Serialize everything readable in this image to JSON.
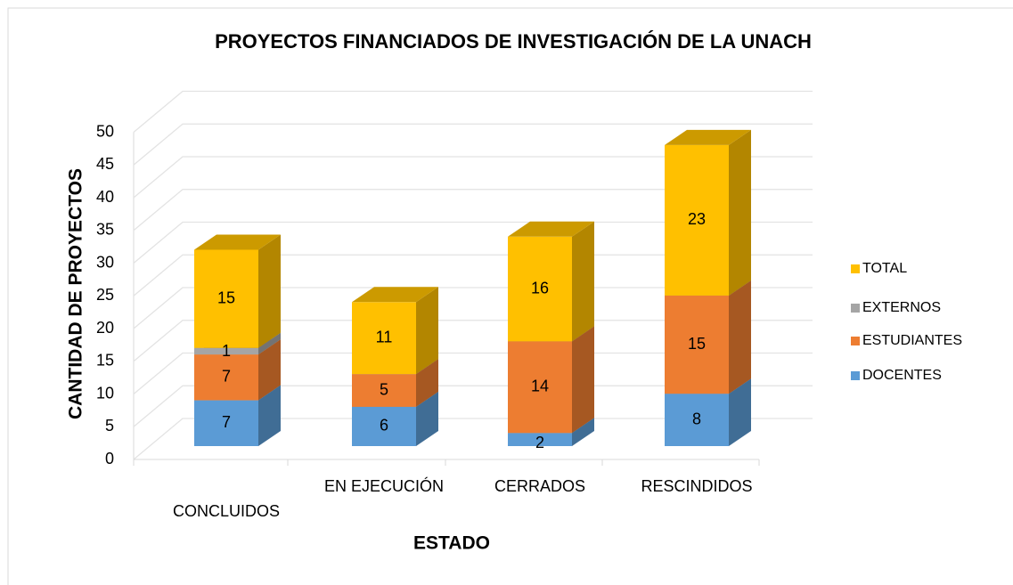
{
  "chart_data": {
    "type": "bar3d_stacked",
    "title": "PROYECTOS FINANCIADOS DE INVESTIGACIÓN DE LA UNACH",
    "x_label": "ESTADO",
    "y_label": "CANTIDAD DE PROYECTOS",
    "categories": [
      "CONCLUIDOS",
      "EN EJECUCIÓN",
      "CERRADOS",
      "RESCINDIDOS"
    ],
    "series": [
      {
        "name": "DOCENTES",
        "color": "#5b9bd5",
        "values": [
          7,
          6,
          2,
          8
        ]
      },
      {
        "name": "ESTUDIANTES",
        "color": "#ed7d31",
        "values": [
          7,
          5,
          14,
          15
        ]
      },
      {
        "name": "EXTERNOS",
        "color": "#a5a5a5",
        "values": [
          1,
          0,
          0,
          0
        ]
      },
      {
        "name": "TOTAL",
        "color": "#ffc000",
        "values": [
          15,
          11,
          16,
          23
        ]
      }
    ],
    "ylim": [
      0,
      50
    ],
    "yticks": [
      0,
      5,
      10,
      15,
      20,
      25,
      30,
      35,
      40,
      45,
      50
    ],
    "grid": true,
    "legend": "right"
  }
}
